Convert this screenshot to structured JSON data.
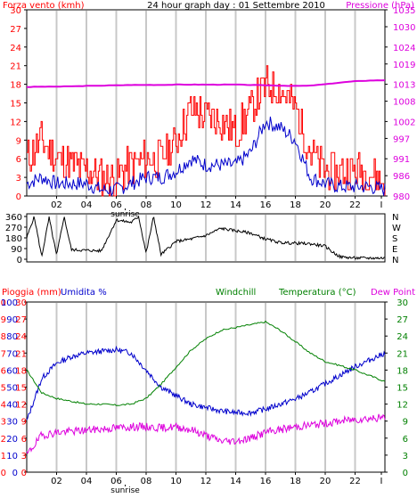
{
  "header": {
    "title": "24 hour graph day : 01 Settembre 2010",
    "wind_label": "Forza vento (kmh)",
    "pressure_label": "Pressione (hPa)",
    "rain_label": "Pioggia (mm)",
    "humidity_label": "Umidita %",
    "windchill_label": "Windchill",
    "temperature_label": "Temperatura (°C)",
    "dewpoint_label": "Dew Point"
  },
  "colors": {
    "wind_gust": "#ff0000",
    "wind_avg": "#0000cc",
    "pressure": "#dd00dd",
    "direction": "#000000",
    "humidity": "#0000cc",
    "temperature": "#008000",
    "dewpoint": "#dd00dd",
    "rain": "#ff0000",
    "grid": "#c8c8c8"
  },
  "chart_data": [
    {
      "type": "line",
      "title": "24 hour graph day : 01 Settembre 2010",
      "xlabel": "",
      "x_ticks": [
        "02",
        "04",
        "06",
        "08",
        "10",
        "12",
        "14",
        "16",
        "18",
        "20",
        "22",
        "I"
      ],
      "x_annotation": "sunrise",
      "grid": true,
      "y_left": {
        "label": "Forza vento (kmh)",
        "range": [
          0,
          30
        ],
        "ticks": [
          "0",
          "3",
          "6",
          "9",
          "12",
          "15",
          "18",
          "21",
          "24",
          "27",
          "30"
        ]
      },
      "y_right": {
        "label": "Pressione (hPa)",
        "range": [
          980,
          1035
        ],
        "ticks": [
          "980",
          "986",
          "991",
          "997",
          "1002",
          "1008",
          "1013",
          "1019",
          "1024",
          "1030",
          "1035"
        ]
      },
      "series": [
        {
          "name": "Forza vento (kmh)",
          "axis": "left",
          "x": [
            0,
            1,
            2,
            3,
            4,
            5,
            6,
            7,
            8,
            9,
            10,
            11,
            12,
            13,
            14,
            15,
            16,
            17,
            18,
            19,
            20,
            21,
            22,
            23,
            24
          ],
          "values": [
            6,
            9,
            6,
            5,
            4,
            3,
            3,
            5,
            6,
            6,
            9,
            14,
            13,
            12,
            10,
            14,
            18,
            17,
            14,
            7,
            4,
            4,
            4,
            4,
            2
          ]
        },
        {
          "x": [
            0,
            1,
            2,
            3,
            4,
            5,
            6,
            7,
            8,
            9,
            10,
            11,
            12,
            13,
            14,
            15,
            16,
            17,
            18,
            19,
            20,
            21,
            22,
            23,
            24
          ],
          "values": [
            2,
            3,
            2,
            2,
            2,
            1,
            1,
            2,
            3,
            3,
            4,
            6,
            5,
            5,
            5,
            7,
            12,
            11,
            9,
            3,
            2,
            1.5,
            1.5,
            1.5,
            1
          ]
        },
        {
          "name": "Pressione (hPa)",
          "axis": "right",
          "x": [
            0,
            1,
            2,
            3,
            4,
            5,
            6,
            7,
            8,
            9,
            10,
            11,
            12,
            13,
            14,
            15,
            16,
            17,
            18,
            19,
            20,
            21,
            22,
            23,
            24
          ],
          "values": [
            1012.2,
            1012.3,
            1012.3,
            1012.4,
            1012.5,
            1012.6,
            1012.7,
            1012.8,
            1012.8,
            1012.8,
            1012.9,
            1012.9,
            1012.9,
            1012.9,
            1012.9,
            1012.8,
            1012.7,
            1012.6,
            1012.5,
            1012.6,
            1013.0,
            1013.5,
            1013.9,
            1014.1,
            1014.2
          ]
        }
      ]
    },
    {
      "type": "line",
      "title": "",
      "y_left": {
        "range": [
          0,
          360
        ],
        "ticks": [
          "0",
          "90",
          "180",
          "270",
          "360"
        ]
      },
      "y_right": {
        "ticks": [
          "N",
          "W",
          "S",
          "E",
          "N"
        ]
      },
      "grid": true,
      "series": [
        {
          "x": [
            0,
            0.5,
            1,
            1.5,
            2,
            2.5,
            3,
            4,
            5,
            6,
            7,
            7.5,
            8,
            8.5,
            9,
            10,
            11,
            12,
            13,
            14,
            15,
            16,
            17,
            18,
            19,
            20,
            20.5,
            21,
            22,
            23,
            24
          ],
          "values": [
            180,
            360,
            20,
            350,
            30,
            360,
            80,
            75,
            70,
            330,
            310,
            360,
            50,
            360,
            40,
            150,
            170,
            200,
            260,
            240,
            220,
            170,
            140,
            135,
            130,
            110,
            60,
            20,
            10,
            10,
            10
          ]
        }
      ]
    },
    {
      "type": "line",
      "title": "",
      "x_ticks": [
        "02",
        "04",
        "06",
        "08",
        "10",
        "12",
        "14",
        "16",
        "18",
        "20",
        "22",
        "I"
      ],
      "x_annotation": "sunrise",
      "grid": true,
      "y_left_rain": {
        "label": "Pioggia (mm)",
        "range": [
          0,
          10
        ],
        "ticks": [
          "0",
          "1",
          "2",
          "3",
          "4",
          "5",
          "6",
          "7",
          "8",
          "9",
          "10"
        ]
      },
      "y_left_humidity": {
        "label": "Umidita %",
        "range": [
          0,
          100
        ],
        "ticks": [
          "0",
          "10",
          "20",
          "30",
          "40",
          "50",
          "60",
          "70",
          "80",
          "90",
          "100"
        ]
      },
      "y_left_temp": {
        "range": [
          0,
          30
        ],
        "ticks": [
          "0",
          "3",
          "6",
          "9",
          "12",
          "15",
          "18",
          "21",
          "24",
          "27",
          "30"
        ]
      },
      "y_right": {
        "range": [
          0,
          30
        ],
        "ticks": [
          "0",
          "3",
          "6",
          "9",
          "12",
          "15",
          "18",
          "21",
          "24",
          "27",
          "30"
        ]
      },
      "series": [
        {
          "name": "Umidita %",
          "axis": "humidity",
          "x": [
            0,
            1,
            2,
            3,
            4,
            5,
            6,
            7,
            8,
            9,
            10,
            11,
            12,
            13,
            14,
            15,
            16,
            17,
            18,
            19,
            20,
            21,
            22,
            23,
            24
          ],
          "values": [
            30,
            55,
            64,
            68,
            70,
            71,
            72,
            70,
            60,
            50,
            45,
            40,
            38,
            36,
            35,
            35,
            37,
            40,
            43,
            47,
            52,
            57,
            62,
            66,
            70
          ]
        },
        {
          "name": "Temperatura (°C)",
          "axis": "right",
          "x": [
            0,
            1,
            2,
            3,
            4,
            5,
            6,
            7,
            8,
            9,
            10,
            11,
            12,
            13,
            14,
            15,
            16,
            17,
            18,
            19,
            20,
            21,
            22,
            23,
            24
          ],
          "values": [
            18,
            14,
            13,
            12.5,
            12,
            12,
            11.8,
            12,
            13,
            15.5,
            18.5,
            21.5,
            23.5,
            25,
            25.5,
            26,
            26.5,
            25,
            23,
            21,
            19.5,
            18.8,
            18,
            17,
            16
          ]
        },
        {
          "name": "Dew Point",
          "axis": "right",
          "x": [
            0,
            1,
            2,
            3,
            4,
            5,
            6,
            7,
            8,
            9,
            10,
            11,
            12,
            13,
            14,
            15,
            16,
            17,
            18,
            19,
            20,
            21,
            22,
            23,
            24
          ],
          "values": [
            3,
            6.5,
            7,
            7.2,
            7.4,
            7.6,
            7.8,
            8,
            8,
            7.8,
            8,
            7.5,
            6.5,
            5.5,
            5.5,
            6,
            7,
            7.5,
            8,
            8.3,
            8.6,
            9,
            9.3,
            9.5,
            9.6
          ]
        }
      ]
    }
  ]
}
